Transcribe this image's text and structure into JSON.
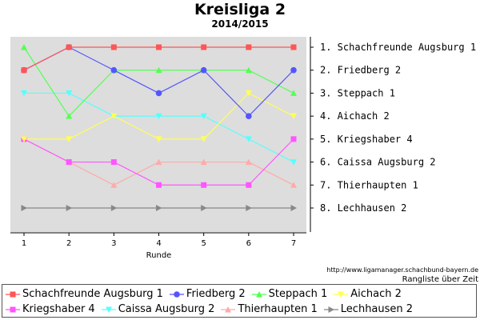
{
  "chart_data": {
    "type": "line",
    "title": "Kreisliga 2",
    "subtitle": "2014/2015",
    "xlabel": "Runde",
    "ylabel": "",
    "x": [
      1,
      2,
      3,
      4,
      5,
      6,
      7
    ],
    "ylim": [
      1,
      8
    ],
    "y_inverted": true,
    "grid": false,
    "legend_placement": "bottom",
    "right_axis_labels": [
      "1. Schachfreunde Augsburg 1",
      "2. Friedberg 2",
      "3. Steppach 1",
      "4. Aichach 2",
      "5. Kriegshaber 4",
      "6. Caissa Augsburg 2",
      "7. Thierhaupten 1",
      "8. Lechhausen 2"
    ],
    "series": [
      {
        "name": "Schachfreunde Augsburg 1",
        "color": "#ff5555",
        "marker": "square",
        "values": [
          2,
          1,
          1,
          1,
          1,
          1,
          1
        ]
      },
      {
        "name": "Friedberg 2",
        "color": "#5555ff",
        "marker": "circle",
        "values": [
          2,
          1,
          2,
          3,
          2,
          4,
          2
        ]
      },
      {
        "name": "Steppach 1",
        "color": "#55ff55",
        "marker": "triangle-up",
        "values": [
          1,
          4,
          2,
          2,
          2,
          2,
          3
        ]
      },
      {
        "name": "Aichach 2",
        "color": "#ffff55",
        "marker": "triangle-down",
        "values": [
          5,
          5,
          4,
          5,
          5,
          3,
          4
        ]
      },
      {
        "name": "Kriegshaber 4",
        "color": "#ff55ff",
        "marker": "square",
        "values": [
          5,
          6,
          6,
          7,
          7,
          7,
          5
        ]
      },
      {
        "name": "Caissa Augsburg 2",
        "color": "#55ffff",
        "marker": "triangle-down",
        "values": [
          3,
          3,
          4,
          4,
          4,
          5,
          6
        ]
      },
      {
        "name": "Thierhaupten 1",
        "color": "#ffaaaa",
        "marker": "triangle-up",
        "values": [
          5,
          6,
          7,
          6,
          6,
          6,
          7
        ]
      },
      {
        "name": "Lechhausen 2",
        "color": "#888888",
        "marker": "triangle-right",
        "values": [
          8,
          8,
          8,
          8,
          8,
          8,
          8
        ]
      }
    ],
    "source": "http://www.ligamanager.schachbund-bayern.de",
    "caption": "Rangliste über Zeit",
    "plot_background": "#dddddd"
  }
}
